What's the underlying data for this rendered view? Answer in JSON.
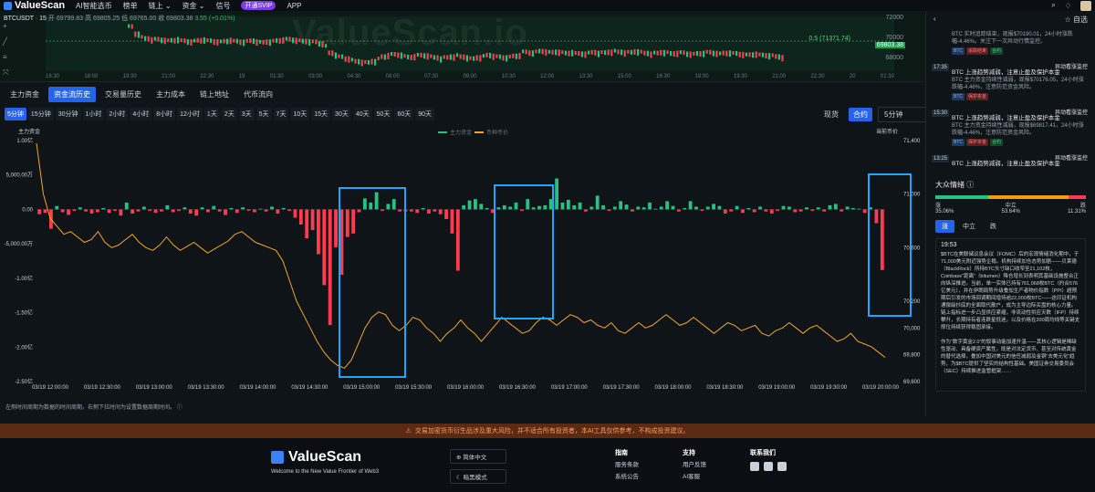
{
  "nav": {
    "logo": "ValueScan",
    "items": [
      "AI智能选币",
      "榜单",
      "链上 ⌄",
      "资金 ⌄",
      "信号"
    ],
    "vip": "开通SVIP",
    "app": "APP",
    "watchlist": "自选"
  },
  "mini": {
    "ticker": "BTCUSDT · 15",
    "open": "开 69799.83",
    "high": "高 69805.25",
    "low": "低 69765.00",
    "close": "收 69803.38",
    "change": "3.55 (+0.01%)",
    "watermark": "ValueScan.io",
    "price_tag": "69803.38",
    "fib_label": "0.5 (71371.74)",
    "right_labels": [
      "72000",
      "70000",
      "68000"
    ],
    "x_labels": [
      "16:30",
      "18:00",
      "19:30",
      "21:00",
      "22:30",
      "19",
      "01:30",
      "03:00",
      "04:30",
      "06:00",
      "07:30",
      "09:00",
      "10:30",
      "12:00",
      "13:30",
      "15:00",
      "16:30",
      "18:00",
      "19:30",
      "21:00",
      "22:30",
      "20",
      "01:30"
    ]
  },
  "tabs": [
    "主力资金",
    "资金流历史",
    "交易量历史",
    "主力成本",
    "链上地址",
    "代币流向"
  ],
  "periods": [
    "5分钟",
    "15分钟",
    "30分钟",
    "1小时",
    "2小时",
    "4小时",
    "8小时",
    "12小时",
    "1天",
    "2天",
    "3天",
    "5天",
    "7天",
    "10天",
    "15天",
    "30天",
    "40天",
    "50天",
    "60天",
    "90天"
  ],
  "market": {
    "spot": "现货",
    "contract": "合约",
    "select": "5分钟"
  },
  "chart_data": {
    "type": "bar",
    "left_axis_title": "主力资金",
    "right_axis_title": "当前币价",
    "legend": [
      "主力资金",
      "币种币价"
    ],
    "left_ticks": [
      "1.00亿",
      "5,000.00万",
      "0.00",
      "-5,000.00万",
      "-1.00亿",
      "-1.50亿",
      "-2.00亿",
      "-2.50亿"
    ],
    "right_ticks": [
      "71,400",
      "71,200",
      "71,000",
      "70,800",
      "70,600",
      "70,400",
      "70,200",
      "70,000",
      "69,800",
      "69,600"
    ],
    "x_labels": [
      "03/19 12:00:00",
      "03/19 12:30:00",
      "03/19 13:00:00",
      "03/19 13:30:00",
      "03/19 14:00:00",
      "03/19 14:30:00",
      "03/19 15:00:00",
      "03/19 15:30:00",
      "03/19 16:00:00",
      "03/19 16:30:00",
      "03/19 17:00:00",
      "03/19 17:30:00",
      "03/19 18:00:00",
      "03/19 18:30:00",
      "03/19 19:00:00",
      "03/19 19:30:00",
      "03/19 20:00:00"
    ],
    "flows_wan": [
      -700,
      -500,
      -2800,
      500,
      -400,
      -800,
      -200,
      300,
      -300,
      -600,
      -400,
      200,
      -500,
      -200,
      -900,
      1000,
      -600,
      -300,
      400,
      -200,
      -500,
      -300,
      600,
      -400,
      -200,
      300,
      -600,
      -900,
      300,
      -400,
      500,
      -300,
      -800,
      200,
      -500,
      300,
      -200,
      -400,
      100,
      -300,
      400,
      -600,
      200,
      -200,
      -1200,
      -2200,
      -4200,
      -3000,
      -6500,
      -11000,
      -16800,
      -5500,
      -9500,
      -4000,
      -3500,
      -400,
      1600,
      1000,
      2500,
      -200,
      800,
      1500,
      -300,
      -300,
      -300,
      -500,
      200,
      -600,
      -300,
      -700,
      -1400,
      -3500,
      -8900,
      600,
      1300,
      1500,
      800,
      200,
      -500,
      300,
      600,
      400,
      1000,
      -200,
      1500,
      300,
      500,
      600,
      1500,
      4500,
      1000,
      1400,
      600,
      1000,
      -300,
      400,
      2000,
      600,
      -200,
      400,
      1200,
      700,
      -300,
      400,
      300,
      1000,
      100,
      400,
      1200,
      500,
      -300,
      200,
      1200,
      400,
      -200,
      400,
      800,
      500,
      -600,
      -300,
      500,
      -500,
      200,
      -400,
      400,
      -300,
      -600,
      -200,
      500,
      400,
      -400,
      -300,
      300,
      -200,
      300,
      -300,
      600,
      800,
      -300,
      400,
      200,
      100,
      -500,
      300,
      -2000,
      -8800
    ],
    "price": [
      71380,
      71000,
      70820,
      70760,
      70700,
      70720,
      70680,
      70640,
      70660,
      70720,
      70640,
      70600,
      70620,
      70660,
      70700,
      70640,
      70600,
      70580,
      70620,
      70680,
      70620,
      70580,
      70610,
      70640,
      70600,
      70560,
      70590,
      70620,
      70650,
      70700,
      70720,
      70680,
      70640,
      70620,
      70600,
      70580,
      70500,
      70350,
      70200,
      70100,
      70000,
      69900,
      69820,
      69760,
      69720,
      69700,
      69760,
      69880,
      70000,
      70080,
      70120,
      70100,
      70020,
      69980,
      70020,
      70080,
      70060,
      70000,
      69960,
      69900,
      69960,
      70000,
      70060,
      70000,
      69960,
      69900,
      69960,
      70020,
      70080,
      70040,
      70000,
      69960,
      69980,
      70040,
      70080,
      70060,
      70020,
      70060,
      70100,
      70080,
      70040,
      70060,
      70020,
      70000,
      70040,
      69980,
      69960,
      70000,
      70040,
      70000,
      70020,
      70060,
      70100,
      70060,
      70020,
      70040,
      70080,
      70040,
      70000,
      69960,
      70000,
      70040,
      70020,
      69980,
      70000,
      70020,
      69960,
      69940,
      69980,
      70000,
      70040,
      70000,
      69960,
      70000,
      70020,
      69980,
      69940,
      69900,
      69920,
      69960,
      69900,
      69880,
      69860,
      69820,
      69780
    ],
    "left_range_wan": [
      -25000,
      10000
    ],
    "right_range": [
      69600,
      71400
    ]
  },
  "chart_footnote": "左侧时间周期为数据的时间周期，右侧下拉时间为设置数据周期时间。",
  "side": {
    "header_watch": "自选",
    "news": [
      {
        "time": "",
        "title": "",
        "body": "BTC 实时追踪结束，现报$70190.01，24小时涨跌幅-4.46%。关注下一次异动行情监控。",
        "tags": [
          "BTC",
          "追踪结束",
          "合约"
        ]
      },
      {
        "time": "17:35",
        "src": "异动看涨监控",
        "title": "BTC 上涨趋势减弱，注意止盈及保护本金",
        "body": "BTC 主力资金持续性减弱，现报$70176.05，24小时涨跌幅-4.46%，注意防范资金风险。",
        "tags": [
          "BTC",
          "保护本金"
        ]
      },
      {
        "time": "15:30",
        "src": "异动看涨监控",
        "title": "BTC 上涨趋势减弱，注意止盈及保护本金",
        "body": "BTC 主力资金持续性减弱，现报$69817.41，24小时涨跌幅-4.46%，注意防范资金风险。",
        "tags": [
          "BTC",
          "保护本金",
          "合约"
        ]
      },
      {
        "time": "13:25",
        "src": "异动看涨监控",
        "title": "BTC 上涨趋势减弱，注意止盈及保护本金",
        "body": "",
        "tags": []
      }
    ],
    "sentiment": {
      "title": "大众情绪",
      "rise": "涨",
      "rise_pct": "35.06%",
      "mid": "中立",
      "mid_pct": "53.64%",
      "fall": "跌",
      "fall_pct": "11.31%",
      "tabs": [
        "涨",
        "中立",
        "跌"
      ]
    },
    "article": {
      "time": "19:53",
      "p1": "$BTC在美联储议息会议（FOMC）后的宏观情绪消化期中，于71,000美元附近强势企稳。机构持续加仓态势加剧——贝莱德（BlackRock）所持BTC头寸缺口收窄至21,102枚，Coinbase“距离”（bitumen）降仓增长到表明其基础设施整合正向纵深推进。当前，单一实体已持有761,068枚BTC（约合576亿美元），并在伊朗局势升级叠加生产者物价指数（PPI）超预期后引发的市场回调期间增持逾22,000枚BTC——这印证机构通偿级抄底的全面取代散户，成为主导边际买盘的核心力量。链上指标进一步凸显供应紧缩，非流动性供应天数（IFP）持续攀升，长期持有者连跌星低迷，以及价格在200周均线等关键支撑位持续获得稳固承接。",
      "p2": "作为“数字黄金2.0”的叙事动能加速升温——其核心逻辑是稀缺性驱动、具备硬资产属性，既是对法定货币、甚至对传统黄金的替代选择，叠加中国对美元的信任减弱及金铜“去美元化”趋势，为$BTC提供了坚实的结构性基础。美国证券交易委员会（SEC）持续推进监管框架……"
    }
  },
  "warn": "交易加密货币衍生品涉及重大风险，并不适合所有投资者，本AI工具仅供参考，不构成投资建议。",
  "footer": {
    "brand": "ValueScan",
    "tagline": "Welcome to the New Value Frontier of Web3",
    "lang": "简体中文",
    "theme": "暗黑模式",
    "col1": {
      "hd": "指南",
      "items": [
        "服务条款",
        "系统公告"
      ]
    },
    "col2": {
      "hd": "支持",
      "items": [
        "用户反馈",
        "AI客服"
      ]
    },
    "col3": {
      "hd": "联系我们"
    }
  },
  "colors": {
    "up": "#26c281",
    "down": "#ff3b4f",
    "price": "#f5a623",
    "accent": "#2563eb",
    "highlight": "#1ea7ff"
  }
}
